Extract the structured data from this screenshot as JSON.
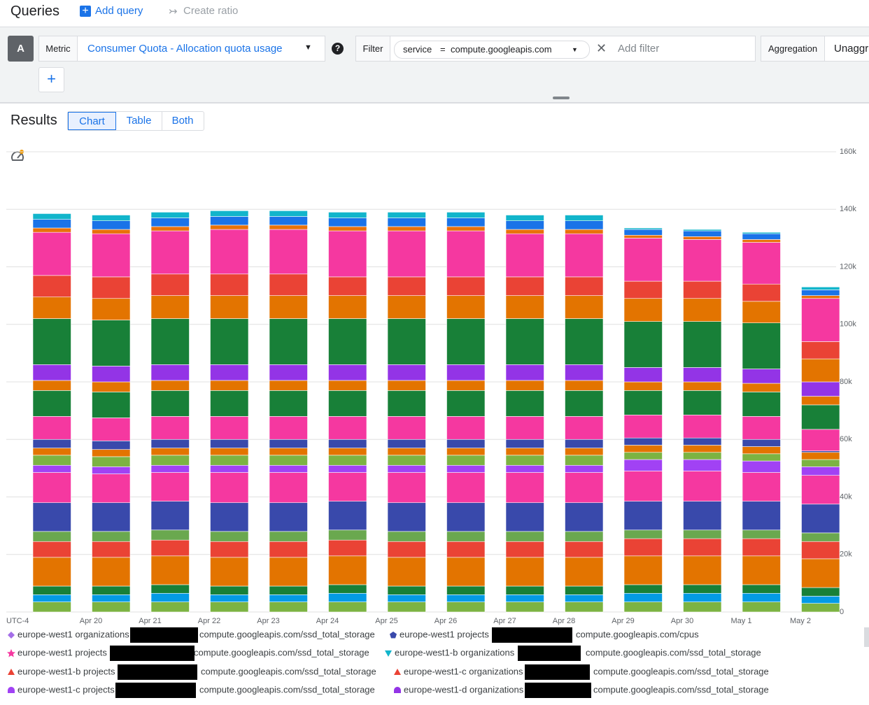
{
  "header": {
    "title": "Queries",
    "add_query": "Add query",
    "create_ratio": "Create ratio"
  },
  "query": {
    "letter": "A",
    "metric_label": "Metric",
    "metric": "Consumer Quota - Allocation quota usage",
    "help": "?",
    "filter_label": "Filter",
    "filter": {
      "key": "service",
      "op": "=",
      "value": "compute.googleapis.com"
    },
    "add_filter": "Add filter",
    "aggregation_label": "Aggregation",
    "aggregation": "Unaggregated",
    "add": "+"
  },
  "results": {
    "title": "Results",
    "tabs": [
      "Chart",
      "Table",
      "Both"
    ]
  },
  "chart_data": {
    "type": "stacked_bar",
    "categories": [
      "UTC-4",
      "Apr 20",
      "Apr 21",
      "Apr 22",
      "Apr 23",
      "Apr 24",
      "Apr 25",
      "Apr 26",
      "Apr 27",
      "Apr 28",
      "Apr 29",
      "Apr 30",
      "May 1",
      "May 2"
    ],
    "ylim": [
      0,
      160000
    ],
    "yticks": [
      0,
      {
        "value": 20000,
        "label": "20k"
      },
      {
        "value": 40000,
        "label": "40k"
      },
      {
        "value": 60000,
        "label": "60k"
      },
      {
        "value": 80000,
        "label": "80k"
      },
      {
        "value": 100000,
        "label": "100k"
      },
      {
        "value": 120000,
        "label": "120k"
      },
      {
        "value": 140000,
        "label": "140k"
      },
      {
        "value": 160000,
        "label": "160k"
      }
    ],
    "grid": true,
    "series": [
      {
        "color": "#7cb342",
        "values": [
          3500,
          3500,
          3500,
          3500,
          3500,
          3500,
          3500,
          3500,
          3500,
          3500,
          3500,
          3500,
          3500,
          3000
        ]
      },
      {
        "color": "#039be5",
        "values": [
          2500,
          2500,
          3000,
          2500,
          2500,
          3000,
          2500,
          2500,
          2500,
          2500,
          3000,
          3000,
          3000,
          2500
        ]
      },
      {
        "color": "#188038",
        "values": [
          3000,
          3000,
          3000,
          3000,
          3000,
          3000,
          3000,
          3000,
          3000,
          3000,
          3000,
          3000,
          3000,
          3000
        ]
      },
      {
        "color": "#e37400",
        "values": [
          10000,
          10000,
          10000,
          10000,
          10000,
          10000,
          10000,
          10000,
          10000,
          10000,
          10000,
          10000,
          10000,
          10000
        ]
      },
      {
        "color": "#ea4335",
        "values": [
          5500,
          5500,
          5500,
          5500,
          5500,
          5500,
          5500,
          5500,
          5500,
          5500,
          6000,
          6000,
          6000,
          6000
        ]
      },
      {
        "color": "#6aa84f",
        "values": [
          3500,
          3500,
          3500,
          3500,
          3500,
          3500,
          3500,
          3500,
          3500,
          3500,
          3000,
          3000,
          3000,
          3000
        ]
      },
      {
        "color": "#3949ab",
        "values": [
          10000,
          10000,
          10000,
          10000,
          10000,
          10000,
          10000,
          10000,
          10000,
          10000,
          10000,
          10000,
          10000,
          10000
        ]
      },
      {
        "color": "#f538a0",
        "values": [
          10500,
          10000,
          10000,
          10500,
          10500,
          10000,
          10500,
          10500,
          10500,
          10500,
          10500,
          10500,
          10000,
          10000
        ]
      },
      {
        "color": "#a142f4",
        "values": [
          2500,
          2500,
          2500,
          2500,
          2500,
          2500,
          2500,
          2500,
          2500,
          2500,
          4000,
          4000,
          4000,
          3000
        ]
      },
      {
        "color": "#7cb342",
        "values": [
          3500,
          3500,
          3500,
          3500,
          3500,
          3500,
          3500,
          3500,
          3500,
          3500,
          2500,
          2500,
          2500,
          2500
        ]
      },
      {
        "color": "#e37400",
        "values": [
          2500,
          2500,
          2500,
          2500,
          2500,
          2500,
          2500,
          2500,
          2500,
          2500,
          2500,
          2500,
          2500,
          2500
        ]
      },
      {
        "color": "#3949ab",
        "values": [
          3000,
          3000,
          3000,
          3000,
          3000,
          3000,
          3000,
          3000,
          3000,
          3000,
          2500,
          2500,
          2500,
          500
        ]
      },
      {
        "color": "#f538a0",
        "values": [
          8000,
          8000,
          8000,
          8000,
          8000,
          8000,
          8000,
          8000,
          8000,
          8000,
          8000,
          8000,
          8000,
          7500
        ]
      },
      {
        "color": "#188038",
        "values": [
          9000,
          9000,
          9000,
          9000,
          9000,
          9000,
          9000,
          9000,
          9000,
          9000,
          8500,
          8500,
          8500,
          8500
        ]
      },
      {
        "color": "#e37400",
        "values": [
          3500,
          3500,
          3500,
          3500,
          3500,
          3500,
          3500,
          3500,
          3500,
          3500,
          3000,
          3000,
          3000,
          3000
        ]
      },
      {
        "color": "#9334e6",
        "values": [
          5500,
          5500,
          5500,
          5500,
          5500,
          5500,
          5500,
          5500,
          5500,
          5500,
          5000,
          5000,
          5000,
          5000
        ]
      },
      {
        "color": "#188038",
        "values": [
          16000,
          16000,
          16000,
          16000,
          16000,
          16000,
          16000,
          16000,
          16000,
          16000,
          16000,
          16000,
          16000,
          0
        ]
      },
      {
        "color": "#e37400",
        "values": [
          7500,
          7500,
          8000,
          8000,
          8000,
          8000,
          8000,
          8000,
          8000,
          8000,
          8000,
          8000,
          7500,
          8000
        ]
      },
      {
        "color": "#ea4335",
        "values": [
          7500,
          7500,
          7500,
          7500,
          7500,
          6500,
          6500,
          6500,
          6500,
          6500,
          6000,
          6000,
          6000,
          6000
        ]
      },
      {
        "color": "#f538a0",
        "values": [
          15000,
          15000,
          15000,
          15500,
          15500,
          16000,
          16000,
          16000,
          15000,
          15000,
          15000,
          14500,
          14500,
          15000
        ]
      },
      {
        "color": "#e8710a",
        "values": [
          1500,
          1500,
          1500,
          1500,
          1500,
          1500,
          1500,
          1500,
          1500,
          1500,
          1000,
          1000,
          1000,
          1000
        ]
      },
      {
        "color": "#1a73e8",
        "values": [
          3000,
          3000,
          3000,
          3000,
          3000,
          3000,
          3000,
          3000,
          3000,
          3000,
          2000,
          2000,
          2000,
          2000
        ]
      },
      {
        "color": "#12b5cb",
        "values": [
          2000,
          2000,
          2000,
          2000,
          2000,
          2000,
          2000,
          2000,
          2000,
          2000,
          500,
          500,
          500,
          1000
        ]
      }
    ],
    "legend": [
      {
        "name": "europe-west1 organizations",
        "metric": "compute.googleapis.com/ssd_total_storage",
        "marker": "diamond",
        "color": "#a46ee8"
      },
      {
        "name": "europe-west1 projects",
        "metric": "compute.googleapis.com/cpus",
        "marker": "pentagon",
        "color": "#3949ab"
      },
      {
        "name": "europe-west1 projects",
        "metric": "compute.googleapis.com/ssd_total_storage",
        "marker": "star",
        "color": "#f538a0"
      },
      {
        "name": "europe-west1-b organizations",
        "metric": "compute.googleapis.com/ssd_total_storage",
        "marker": "triangle-down",
        "color": "#12b5cb"
      },
      {
        "name": "europe-west1-b projects",
        "metric": "compute.googleapis.com/ssd_total_storage",
        "marker": "triangle",
        "color": "#ea4335"
      },
      {
        "name": "europe-west1-c organizations",
        "metric": "compute.googleapis.com/ssd_total_storage",
        "marker": "triangle",
        "color": "#ea4335"
      },
      {
        "name": "europe-west1-c projects",
        "metric": "compute.googleapis.com/ssd_total_storage",
        "marker": "semicircle",
        "color": "#a142f4"
      },
      {
        "name": "europe-west1-d organizations",
        "metric": "compute.googleapis.com/ssd_total_storage",
        "marker": "semicircle",
        "color": "#9334e6"
      }
    ]
  }
}
